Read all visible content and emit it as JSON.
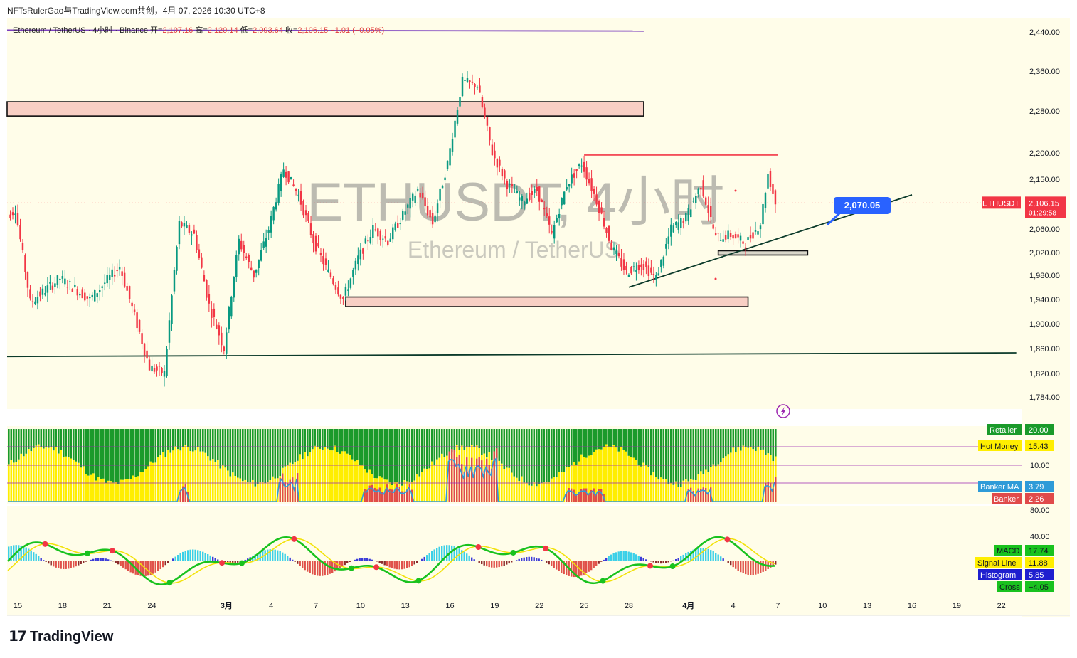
{
  "header": {
    "text": "NFTsRulerGao与TradingView.com共创，4月 07, 2026 10:30 UTC+8"
  },
  "legend": {
    "symbol": "Ethereum / TetherUS · 4小时 · Binance",
    "open_label": "开=",
    "open": "2,107.16",
    "high_label": "高=",
    "high": "2,120.14",
    "low_label": "低=",
    "low": "2,093.64",
    "close_label": "收=",
    "close": "2,106.15",
    "change": "−1.01 (−0.05%)"
  },
  "watermark": {
    "main": "ETHUSDT, 4小时",
    "sub": "Ethereum / TetherUS"
  },
  "footer": {
    "brand": "TradingView"
  },
  "colors": {
    "background": "#fffde9",
    "up": "#089981",
    "down": "#f23645",
    "zone_fill": "#f8cfc4",
    "trend": "#0b3a2a",
    "resistance": "#f23645",
    "tag_blue": "#2962ff"
  },
  "chart_data": [
    {
      "type": "candlestick",
      "symbol": "ETHUSDT",
      "y_axis_ticks": [
        2440,
        2360,
        2280,
        2200,
        2150,
        2060,
        2020,
        1980,
        1940,
        1900,
        1860,
        1820,
        1784
      ],
      "y_axis_tick_labels": [
        "2,440.00",
        "2,360.00",
        "2,280.00",
        "2,200.00",
        "2,150.00",
        "2,060.00",
        "2,020.00",
        "1,980.00",
        "1,940.00",
        "1,900.00",
        "1,860.00",
        "1,820.00",
        "1,784.00"
      ],
      "x_axis_tick_labels": [
        "15",
        "18",
        "21",
        "24",
        "3月",
        "4",
        "7",
        "10",
        "13",
        "16",
        "19",
        "22",
        "25",
        "28",
        "4月",
        "4",
        "7",
        "10",
        "13",
        "16",
        "19",
        "22"
      ],
      "last_price": {
        "label": "ETHUSDT",
        "value": "2,106.15",
        "countdown": "01:29:58"
      },
      "annotation": {
        "value": "2,070.05"
      },
      "key_points": [
        {
          "date": "2026-02-14",
          "price": 2070
        },
        {
          "date": "2026-02-15",
          "price": 2095
        },
        {
          "date": "2026-02-16",
          "price": 1935
        },
        {
          "date": "2026-02-18",
          "price": 1975
        },
        {
          "date": "2026-02-20",
          "price": 1940
        },
        {
          "date": "2026-02-22",
          "price": 1995
        },
        {
          "date": "2026-02-24",
          "price": 1830
        },
        {
          "date": "2026-02-25",
          "price": 1820
        },
        {
          "date": "2026-02-26",
          "price": 2070
        },
        {
          "date": "2026-02-27",
          "price": 2050
        },
        {
          "date": "2026-02-28",
          "price": 1930
        },
        {
          "date": "2026-03-01",
          "price": 1860
        },
        {
          "date": "2026-03-02",
          "price": 2040
        },
        {
          "date": "2026-03-03",
          "price": 1980
        },
        {
          "date": "2026-03-04",
          "price": 2060
        },
        {
          "date": "2026-03-05",
          "price": 2170
        },
        {
          "date": "2026-03-06",
          "price": 2120
        },
        {
          "date": "2026-03-07",
          "price": 2040
        },
        {
          "date": "2026-03-08",
          "price": 1985
        },
        {
          "date": "2026-03-09",
          "price": 1940
        },
        {
          "date": "2026-03-10",
          "price": 2010
        },
        {
          "date": "2026-03-11",
          "price": 2060
        },
        {
          "date": "2026-03-12",
          "price": 2040
        },
        {
          "date": "2026-03-13",
          "price": 2085
        },
        {
          "date": "2026-03-14",
          "price": 2130
        },
        {
          "date": "2026-03-15",
          "price": 2070
        },
        {
          "date": "2026-03-16",
          "price": 2180
        },
        {
          "date": "2026-03-17",
          "price": 2340
        },
        {
          "date": "2026-03-18",
          "price": 2330
        },
        {
          "date": "2026-03-19",
          "price": 2200
        },
        {
          "date": "2026-03-20",
          "price": 2140
        },
        {
          "date": "2026-03-21",
          "price": 2110
        },
        {
          "date": "2026-03-22",
          "price": 2130
        },
        {
          "date": "2026-03-23",
          "price": 2050
        },
        {
          "date": "2026-03-24",
          "price": 2140
        },
        {
          "date": "2026-03-25",
          "price": 2180
        },
        {
          "date": "2026-03-26",
          "price": 2110
        },
        {
          "date": "2026-03-27",
          "price": 2030
        },
        {
          "date": "2026-03-28",
          "price": 1985
        },
        {
          "date": "2026-03-29",
          "price": 2000
        },
        {
          "date": "2026-03-30",
          "price": 1975
        },
        {
          "date": "2026-03-31",
          "price": 2060
        },
        {
          "date": "2026-04-01",
          "price": 2080
        },
        {
          "date": "2026-04-02",
          "price": 2140
        },
        {
          "date": "2026-04-03",
          "price": 2045
        },
        {
          "date": "2026-04-04",
          "price": 2050
        },
        {
          "date": "2026-04-05",
          "price": 2035
        },
        {
          "date": "2026-04-06",
          "price": 2070
        },
        {
          "date": "2026-04-06T12:00",
          "price": 2160
        },
        {
          "date": "2026-04-07",
          "price": 2106.15
        }
      ],
      "zones": [
        {
          "from_date": "2026-02-14",
          "to_date": "2026-03-29",
          "low": 2270,
          "high": 2298
        },
        {
          "from_date": "2026-03-09",
          "to_date": "2026-04-05",
          "low": 1928,
          "high": 1944
        },
        {
          "from_date": "2026-04-03",
          "to_date": "2026-04-09",
          "low": 2017,
          "high": 2023
        }
      ],
      "lines": [
        {
          "kind": "support",
          "from": {
            "date": "2026-02-14",
            "price": 1847
          },
          "to": {
            "date": "2026-04-23",
            "price": 1853
          }
        },
        {
          "kind": "trendline",
          "from": {
            "date": "2026-03-28",
            "price": 1960
          },
          "to": {
            "date": "2026-04-16",
            "price": 2121
          }
        },
        {
          "kind": "resistance",
          "from": {
            "date": "2026-03-25",
            "price": 2196
          },
          "to": {
            "date": "2026-04-07",
            "price": 2196
          }
        },
        {
          "kind": "drawing",
          "from": {
            "date": "2026-02-14",
            "price": 2444
          },
          "to": {
            "date": "2026-03-29",
            "price": 2442
          }
        }
      ]
    },
    {
      "type": "bar",
      "name": "banker_indicator",
      "ylim": [
        0,
        20
      ],
      "y_axis_tick_labels": [
        "10.00"
      ],
      "values_labels": [
        {
          "name": "Retailer",
          "value": "20.00",
          "color": "#1a9a2a"
        },
        {
          "name": "Hot Money",
          "value": "15.43",
          "color": "#ffee00"
        },
        {
          "name": "Banker MA",
          "value": "3.79",
          "color": "#2f9bd8"
        },
        {
          "name": "Banker",
          "value": "2.26",
          "color": "#e04a4a"
        }
      ]
    },
    {
      "type": "line",
      "name": "macd",
      "y_axis_tick_labels": [
        "80.00",
        "40.00"
      ],
      "values_labels": [
        {
          "name": "MACD",
          "value": "17.74",
          "color": "#19c21e"
        },
        {
          "name": "Signal Line",
          "value": "11.88",
          "color": "#ffee00"
        },
        {
          "name": "Histogram",
          "value": "5.85",
          "color": "#1f1fcf"
        },
        {
          "name": "Cross",
          "value": "−4.05",
          "color": "#19c21e"
        }
      ]
    }
  ]
}
